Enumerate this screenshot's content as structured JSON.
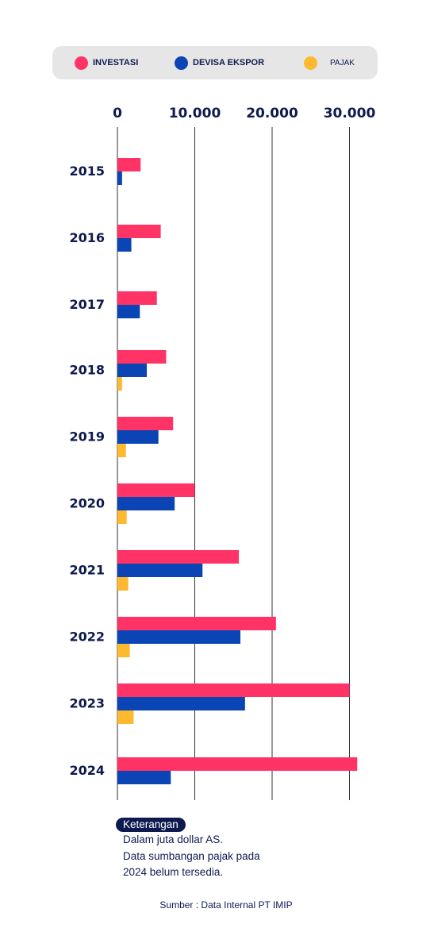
{
  "legend": {
    "investasi": "INVESTASI",
    "devisa": "DEVISA EKSPOR",
    "pajak": "PAJAK"
  },
  "notes": {
    "title": "Keterangan",
    "lines": [
      "Dalam juta dollar AS.",
      "Data sumbangan pajak pada",
      "2024 belum tersedia."
    ]
  },
  "source": "Sumber : Data Internal PT IMIP",
  "colors": {
    "investasi": "#ff3366",
    "devisa": "#0a44b5",
    "pajak": "#ffb92e",
    "text": "#0d1a4f",
    "grid": "#333333"
  },
  "chart_data": {
    "type": "bar",
    "orientation": "horizontal",
    "categories": [
      "2015",
      "2016",
      "2017",
      "2018",
      "2019",
      "2020",
      "2021",
      "2022",
      "2023",
      "2024"
    ],
    "series": [
      {
        "name": "INVESTASI",
        "values": [
          3000,
          5600,
          5100,
          6300,
          7200,
          10000,
          15700,
          20500,
          30000,
          31000
        ]
      },
      {
        "name": "DEVISA EKSPOR",
        "values": [
          600,
          1800,
          2900,
          3800,
          5300,
          7400,
          11000,
          15900,
          16500,
          6900
        ]
      },
      {
        "name": "PAJAK",
        "values": [
          null,
          null,
          null,
          600,
          1100,
          1200,
          1400,
          1600,
          2100,
          null
        ]
      }
    ],
    "xticks": [
      "0",
      "10.000",
      "20.000",
      "30.000"
    ],
    "xtick_values": [
      0,
      10000,
      20000,
      30000
    ],
    "xlim": [
      0,
      31500
    ],
    "grid": true,
    "legend_position": "top"
  }
}
